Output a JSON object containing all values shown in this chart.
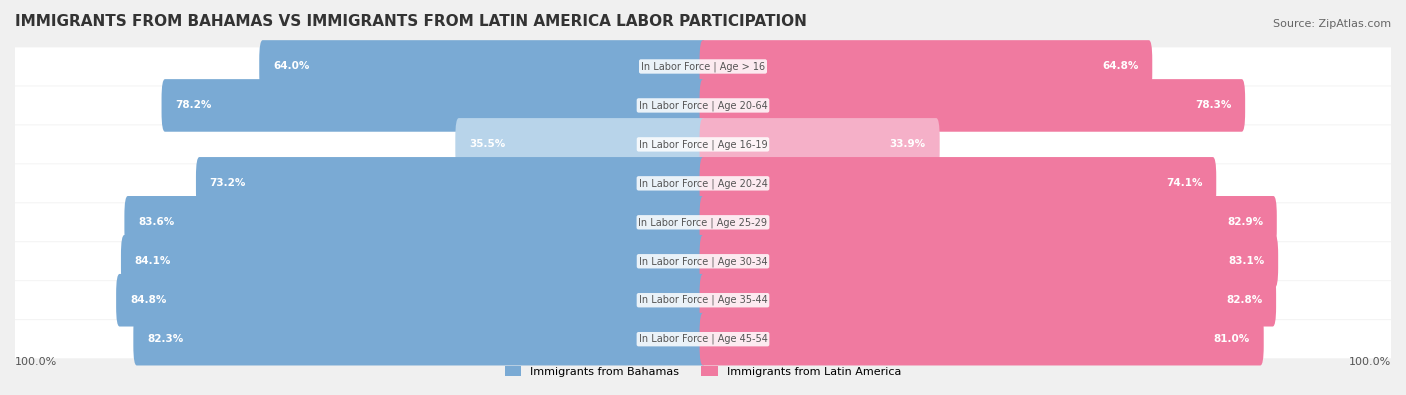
{
  "title": "IMMIGRANTS FROM BAHAMAS VS IMMIGRANTS FROM LATIN AMERICA LABOR PARTICIPATION",
  "source": "Source: ZipAtlas.com",
  "categories": [
    "In Labor Force | Age > 16",
    "In Labor Force | Age 20-64",
    "In Labor Force | Age 16-19",
    "In Labor Force | Age 20-24",
    "In Labor Force | Age 25-29",
    "In Labor Force | Age 30-34",
    "In Labor Force | Age 35-44",
    "In Labor Force | Age 45-54"
  ],
  "bahamas_values": [
    64.0,
    78.2,
    35.5,
    73.2,
    83.6,
    84.1,
    84.8,
    82.3
  ],
  "latin_values": [
    64.8,
    78.3,
    33.9,
    74.1,
    82.9,
    83.1,
    82.8,
    81.0
  ],
  "bahamas_color_dark": "#7aaad4",
  "bahamas_color_light": "#b8d4ea",
  "latin_color_dark": "#f07aa0",
  "latin_color_light": "#f5b0c8",
  "bar_height": 0.35,
  "max_value": 100.0,
  "bg_color": "#f0f0f0",
  "row_bg_color": "#ffffff",
  "title_fontsize": 11,
  "label_fontsize": 8,
  "legend_label_bahamas": "Immigrants from Bahamas",
  "legend_label_latin": "Immigrants from Latin America"
}
